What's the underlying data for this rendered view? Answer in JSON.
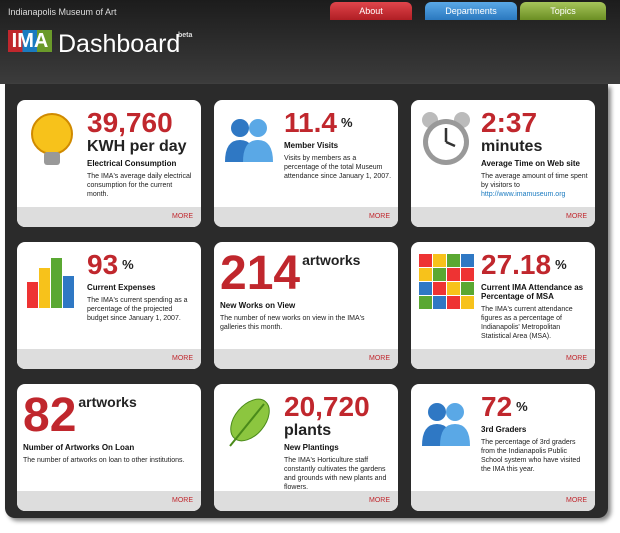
{
  "header": {
    "org": "Indianapolis Museum of Art",
    "logo": "IMA",
    "title": "Dashboard",
    "badge": "beta"
  },
  "tabs": [
    "About",
    "Departments",
    "Topics"
  ],
  "cards": [
    {
      "value": "39,760",
      "unit": "KWH per day",
      "title": "Electrical Consumption",
      "description": "The IMA's average daily electrical consumption for the current month.",
      "more": "MORE"
    },
    {
      "value": "11.4",
      "unit": "%",
      "title": "Member Visits",
      "description": "Visits by members as a percentage of the total Museum attendance since January 1, 2007.",
      "more": "MORE"
    },
    {
      "value": "2:37",
      "unit": "minutes",
      "title": "Average Time on Web site",
      "description": "The average amount of time spent by visitors to",
      "url": "http://www.imamuseum.org",
      "more": "MORE"
    },
    {
      "value": "93",
      "unit": "%",
      "title": "Current Expenses",
      "description": "The IMA's current spending as a percentage of the projected budget since January 1, 2007.",
      "more": "MORE"
    },
    {
      "value": "214",
      "unit": "artworks",
      "title": "New Works on View",
      "description": "The number of new works on view in the IMA's galleries this month.",
      "more": "MORE"
    },
    {
      "value": "27.18",
      "unit": "%",
      "title": "Current IMA Attendance as Percentage of MSA",
      "description": "The IMA's current attendance figures as a percentage of Indianapolis' Metropolitan Statistical Area (MSA).",
      "more": "MORE"
    },
    {
      "value": "82",
      "unit": "artworks",
      "title": "Number of Artworks On Loan",
      "description": "The number of artworks on loan to other institutions.",
      "more": "MORE"
    },
    {
      "value": "20,720",
      "unit": "plants",
      "title": "New Plantings",
      "description": "The IMA's Horticulture staff constantly cultivates the gardens and grounds with new plants and flowers.",
      "more": "MORE"
    },
    {
      "value": "72",
      "unit": "%",
      "title": "3rd Graders",
      "description": "The percentage of 3rd graders from the Indianapolis Public School system who have visited the IMA this year.",
      "more": "MORE"
    }
  ]
}
